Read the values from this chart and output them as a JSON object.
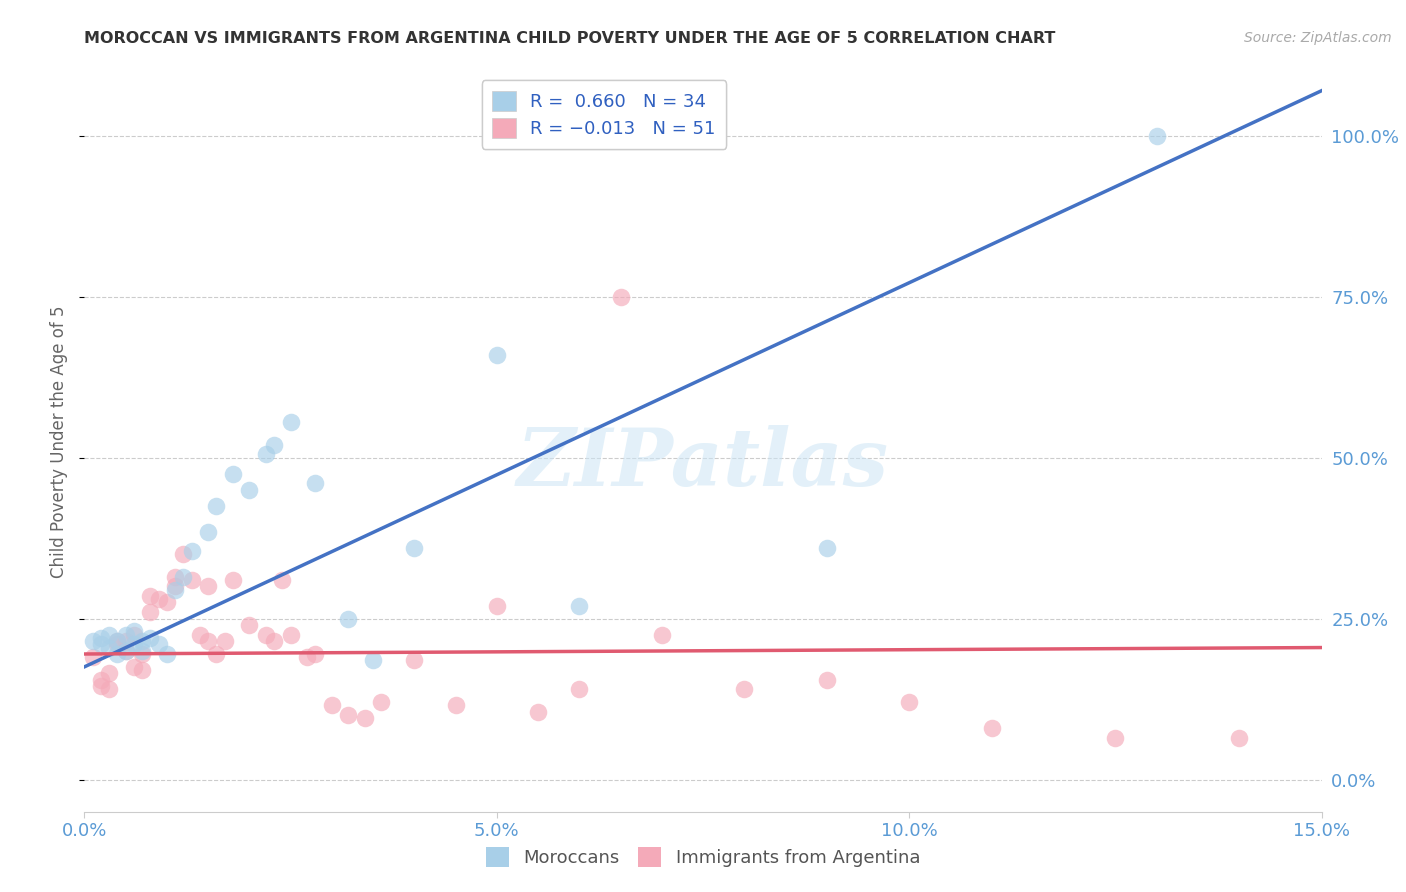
{
  "title": "MOROCCAN VS IMMIGRANTS FROM ARGENTINA CHILD POVERTY UNDER THE AGE OF 5 CORRELATION CHART",
  "source": "Source: ZipAtlas.com",
  "ylabel_label": "Child Poverty Under the Age of 5",
  "xlim": [
    0.0,
    0.15
  ],
  "ylim": [
    -0.05,
    1.1
  ],
  "xticks": [
    0.0,
    0.05,
    0.1,
    0.15
  ],
  "xtick_labels": [
    "0.0%",
    "5.0%",
    "10.0%",
    "15.0%"
  ],
  "ytick_positions": [
    0.0,
    0.25,
    0.5,
    0.75,
    1.0
  ],
  "ytick_labels": [
    "0.0%",
    "25.0%",
    "50.0%",
    "75.0%",
    "100.0%"
  ],
  "moroccan_R": "0.660",
  "moroccan_N": "34",
  "argentina_R": "-0.013",
  "argentina_N": "51",
  "moroccan_color": "#a8cfe8",
  "argentina_color": "#f4aab9",
  "moroccan_line_color": "#4472c4",
  "argentina_line_color": "#e05a70",
  "moroccan_line_x": [
    0.0,
    0.15
  ],
  "moroccan_line_y": [
    0.175,
    1.07
  ],
  "argentina_line_x": [
    0.0,
    0.15
  ],
  "argentina_line_y": [
    0.195,
    0.205
  ],
  "moroccan_x": [
    0.001,
    0.002,
    0.002,
    0.003,
    0.003,
    0.004,
    0.004,
    0.005,
    0.005,
    0.006,
    0.006,
    0.007,
    0.007,
    0.008,
    0.009,
    0.01,
    0.011,
    0.012,
    0.013,
    0.015,
    0.016,
    0.018,
    0.02,
    0.022,
    0.023,
    0.025,
    0.028,
    0.032,
    0.035,
    0.04,
    0.05,
    0.06,
    0.09,
    0.13
  ],
  "moroccan_y": [
    0.215,
    0.22,
    0.21,
    0.205,
    0.225,
    0.215,
    0.195,
    0.225,
    0.2,
    0.21,
    0.23,
    0.215,
    0.2,
    0.22,
    0.21,
    0.195,
    0.295,
    0.315,
    0.355,
    0.385,
    0.425,
    0.475,
    0.45,
    0.505,
    0.52,
    0.555,
    0.46,
    0.25,
    0.185,
    0.36,
    0.66,
    0.27,
    0.36,
    1.0
  ],
  "argentina_x": [
    0.001,
    0.002,
    0.002,
    0.003,
    0.003,
    0.004,
    0.004,
    0.005,
    0.005,
    0.006,
    0.006,
    0.007,
    0.007,
    0.008,
    0.008,
    0.009,
    0.01,
    0.011,
    0.011,
    0.012,
    0.013,
    0.014,
    0.015,
    0.015,
    0.016,
    0.017,
    0.018,
    0.02,
    0.022,
    0.023,
    0.024,
    0.025,
    0.027,
    0.028,
    0.03,
    0.032,
    0.034,
    0.036,
    0.04,
    0.045,
    0.05,
    0.055,
    0.06,
    0.065,
    0.07,
    0.08,
    0.09,
    0.1,
    0.11,
    0.125,
    0.14
  ],
  "argentina_y": [
    0.19,
    0.155,
    0.145,
    0.14,
    0.165,
    0.215,
    0.21,
    0.215,
    0.2,
    0.175,
    0.225,
    0.195,
    0.17,
    0.285,
    0.26,
    0.28,
    0.275,
    0.3,
    0.315,
    0.35,
    0.31,
    0.225,
    0.3,
    0.215,
    0.195,
    0.215,
    0.31,
    0.24,
    0.225,
    0.215,
    0.31,
    0.225,
    0.19,
    0.195,
    0.115,
    0.1,
    0.095,
    0.12,
    0.185,
    0.115,
    0.27,
    0.105,
    0.14,
    0.75,
    0.225,
    0.14,
    0.155,
    0.12,
    0.08,
    0.065,
    0.065
  ],
  "watermark": "ZIPatlas",
  "background_color": "#ffffff",
  "grid_color": "#cccccc",
  "scatter_size": 160,
  "scatter_alpha": 0.65
}
